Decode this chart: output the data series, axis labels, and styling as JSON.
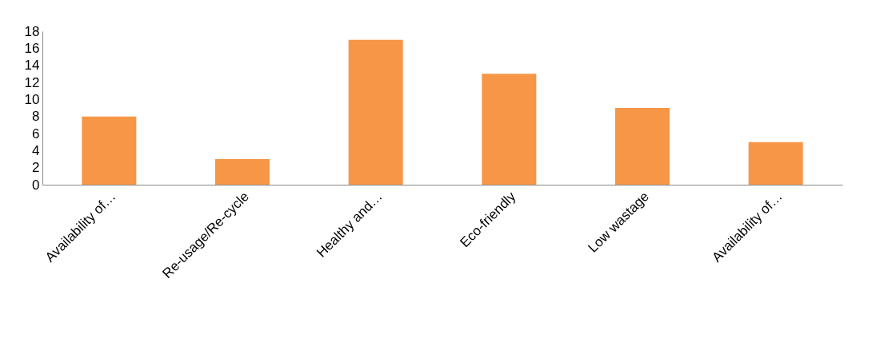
{
  "chart_data": {
    "type": "bar",
    "categories": [
      "Availability of…",
      "Re-usage/Re-cycle",
      "Healthy and…",
      "Eco-friendly",
      "Low wastage",
      "Availability of…"
    ],
    "values": [
      8,
      3,
      17,
      13,
      9,
      5
    ],
    "color": "#f79646",
    "ylim": [
      0,
      18
    ],
    "yticks": [
      0,
      2,
      4,
      6,
      8,
      10,
      12,
      14,
      16,
      18
    ],
    "grid": false
  }
}
